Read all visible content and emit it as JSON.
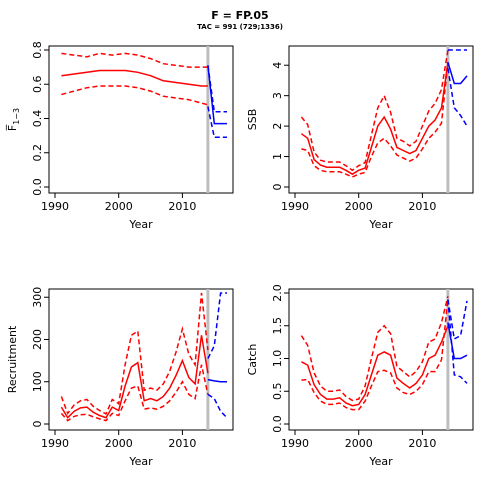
{
  "figure": {
    "title": "F = FP.05",
    "subtitle": "TAC = 991 (729;1336)"
  },
  "colors": {
    "history": "#ff0000",
    "forecast": "#0000ff",
    "vline": "#bebebe",
    "axis": "#000000"
  },
  "chart_data": [
    {
      "id": "fbar",
      "type": "line",
      "title": "",
      "xlabel": "Year",
      "ylabel": "F̅",
      "ylabel_sub": "1−3",
      "xlim": [
        1990,
        2017
      ],
      "ylim": [
        0,
        0.8
      ],
      "xticks": [
        1990,
        2000,
        2010
      ],
      "yticks": [
        0.0,
        0.2,
        0.4,
        0.6,
        0.8
      ],
      "ytick_labels": [
        "0.0",
        "0.2",
        "0.4",
        "0.6",
        "0.8"
      ],
      "grid": false,
      "vline_x": 2014,
      "history": {
        "x": [
          1991,
          1993,
          1995,
          1997,
          1999,
          2001,
          2003,
          2005,
          2007,
          2009,
          2011,
          2013,
          2014
        ],
        "median": [
          0.65,
          0.66,
          0.67,
          0.68,
          0.68,
          0.68,
          0.67,
          0.65,
          0.62,
          0.61,
          0.6,
          0.59,
          0.59
        ],
        "lower": [
          0.54,
          0.56,
          0.58,
          0.59,
          0.59,
          0.59,
          0.58,
          0.56,
          0.53,
          0.52,
          0.51,
          0.49,
          0.48
        ],
        "upper": [
          0.78,
          0.77,
          0.76,
          0.78,
          0.77,
          0.78,
          0.77,
          0.75,
          0.72,
          0.71,
          0.7,
          0.7,
          0.7
        ]
      },
      "forecast": {
        "x": [
          2014,
          2015,
          2016,
          2017
        ],
        "median": [
          0.71,
          0.37,
          0.37,
          0.37
        ],
        "lower": [
          0.47,
          0.29,
          0.29,
          0.29
        ],
        "upper": [
          0.71,
          0.44,
          0.44,
          0.44
        ]
      }
    },
    {
      "id": "ssb",
      "type": "line",
      "title": "",
      "xlabel": "Year",
      "ylabel": "SSB",
      "ylabel_sub": "",
      "xlim": [
        1990,
        2017
      ],
      "ylim": [
        0,
        4.5
      ],
      "xticks": [
        1990,
        2000,
        2010
      ],
      "yticks": [
        0,
        1,
        2,
        3,
        4
      ],
      "ytick_labels": [
        "0",
        "1",
        "2",
        "3",
        "4"
      ],
      "grid": false,
      "vline_x": 2014,
      "history": {
        "x": [
          1991,
          1992,
          1993,
          1994,
          1995,
          1996,
          1997,
          1998,
          1999,
          2000,
          2001,
          2002,
          2003,
          2004,
          2005,
          2006,
          2007,
          2008,
          2009,
          2010,
          2011,
          2012,
          2013,
          2014
        ],
        "median": [
          1.75,
          1.6,
          0.9,
          0.72,
          0.65,
          0.65,
          0.65,
          0.55,
          0.42,
          0.55,
          0.62,
          1.3,
          2.0,
          2.3,
          1.9,
          1.3,
          1.2,
          1.1,
          1.2,
          1.6,
          2.0,
          2.2,
          2.6,
          4.1
        ],
        "lower": [
          1.25,
          1.2,
          0.7,
          0.55,
          0.5,
          0.5,
          0.5,
          0.42,
          0.33,
          0.42,
          0.48,
          1.0,
          1.45,
          1.6,
          1.35,
          1.05,
          0.95,
          0.85,
          0.95,
          1.25,
          1.6,
          1.8,
          2.1,
          4.1
        ],
        "upper": [
          2.3,
          2.05,
          1.15,
          0.88,
          0.82,
          0.82,
          0.82,
          0.7,
          0.55,
          0.7,
          0.8,
          1.7,
          2.6,
          3.0,
          2.45,
          1.6,
          1.5,
          1.35,
          1.5,
          2.0,
          2.5,
          2.75,
          3.2,
          4.5
        ]
      },
      "forecast": {
        "x": [
          2014,
          2015,
          2016,
          2017
        ],
        "median": [
          4.1,
          3.4,
          3.4,
          3.65
        ],
        "lower": [
          3.9,
          2.6,
          2.35,
          2.0
        ],
        "upper": [
          4.5,
          4.5,
          4.5,
          4.5
        ]
      }
    },
    {
      "id": "recruitment",
      "type": "line",
      "title": "",
      "xlabel": "Year",
      "ylabel": "Recruitment",
      "ylabel_sub": "",
      "xlim": [
        1990,
        2017
      ],
      "ylim": [
        0,
        310
      ],
      "xticks": [
        1990,
        2000,
        2010
      ],
      "yticks": [
        0,
        100,
        200,
        300
      ],
      "ytick_labels": [
        "0",
        "100",
        "200",
        "300"
      ],
      "grid": false,
      "vline_x": 2014,
      "history": {
        "x": [
          1991,
          1992,
          1993,
          1994,
          1995,
          1996,
          1997,
          1998,
          1999,
          2000,
          2001,
          2002,
          2003,
          2004,
          2005,
          2006,
          2007,
          2008,
          2009,
          2010,
          2011,
          2012,
          2013,
          2014
        ],
        "median": [
          40,
          15,
          30,
          38,
          40,
          28,
          20,
          15,
          40,
          32,
          90,
          135,
          145,
          55,
          60,
          55,
          65,
          85,
          115,
          150,
          110,
          95,
          210,
          120
        ],
        "lower": [
          25,
          8,
          18,
          22,
          23,
          17,
          12,
          8,
          25,
          20,
          55,
          85,
          90,
          35,
          38,
          35,
          42,
          55,
          75,
          100,
          70,
          60,
          140,
          70
        ],
        "upper": [
          65,
          25,
          45,
          55,
          58,
          42,
          32,
          24,
          58,
          48,
          140,
          210,
          220,
          80,
          85,
          80,
          95,
          125,
          170,
          225,
          165,
          140,
          310,
          175
        ]
      },
      "forecast": {
        "x": [
          2014,
          2015,
          2016,
          2017
        ],
        "median": [
          105,
          102,
          100,
          100
        ],
        "lower": [
          70,
          60,
          30,
          15
        ],
        "upper": [
          155,
          185,
          310,
          310
        ]
      }
    },
    {
      "id": "catch",
      "type": "line",
      "title": "",
      "xlabel": "Year",
      "ylabel": "Catch",
      "ylabel_sub": "",
      "xlim": [
        1990,
        2017
      ],
      "ylim": [
        0,
        2.0
      ],
      "xticks": [
        1990,
        2000,
        2010
      ],
      "yticks": [
        0.0,
        0.5,
        1.0,
        1.5,
        2.0
      ],
      "ytick_labels": [
        "0.0",
        "0.5",
        "1.0",
        "1.5",
        "2.0"
      ],
      "grid": false,
      "vline_x": 2014,
      "history": {
        "x": [
          1991,
          1992,
          1993,
          1994,
          1995,
          1996,
          1997,
          1998,
          1999,
          2000,
          2001,
          2002,
          2003,
          2004,
          2005,
          2006,
          2007,
          2008,
          2009,
          2010,
          2011,
          2012,
          2013,
          2014
        ],
        "median": [
          0.95,
          0.9,
          0.6,
          0.45,
          0.38,
          0.38,
          0.4,
          0.32,
          0.28,
          0.3,
          0.45,
          0.75,
          1.05,
          1.1,
          1.05,
          0.7,
          0.62,
          0.55,
          0.62,
          0.75,
          1.0,
          1.05,
          1.25,
          1.5
        ],
        "lower": [
          0.67,
          0.68,
          0.48,
          0.35,
          0.3,
          0.3,
          0.32,
          0.25,
          0.22,
          0.22,
          0.35,
          0.58,
          0.8,
          0.82,
          0.78,
          0.55,
          0.48,
          0.45,
          0.5,
          0.6,
          0.8,
          0.8,
          0.98,
          1.9
        ],
        "upper": [
          1.35,
          1.2,
          0.78,
          0.58,
          0.5,
          0.5,
          0.52,
          0.42,
          0.36,
          0.38,
          0.58,
          1.0,
          1.4,
          1.5,
          1.38,
          0.88,
          0.8,
          0.72,
          0.8,
          0.95,
          1.25,
          1.3,
          1.55,
          1.95
        ]
      },
      "forecast": {
        "x": [
          2014,
          2015,
          2016,
          2017
        ],
        "median": [
          1.55,
          1.0,
          1.0,
          1.05
        ],
        "lower": [
          1.9,
          0.75,
          0.72,
          0.62
        ],
        "upper": [
          1.9,
          1.3,
          1.35,
          1.88
        ]
      }
    }
  ]
}
